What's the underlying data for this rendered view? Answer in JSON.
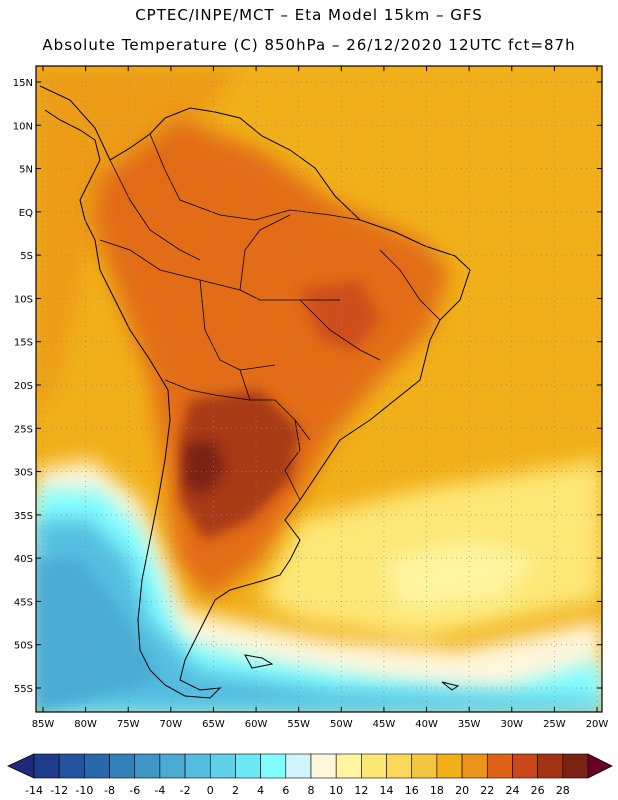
{
  "header": {
    "line1": "CPTEC/INPE/MCT –  Eta Model 15km – GFS",
    "line2": "Absolute Temperature (C) 850hPa – 26/12/2020 12UTC fct=87h"
  },
  "map": {
    "lat_labels": [
      "15N",
      "10N",
      "5N",
      "EQ",
      "5S",
      "10S",
      "15S",
      "20S",
      "25S",
      "30S",
      "35S",
      "40S",
      "45S",
      "50S",
      "55S"
    ],
    "lon_labels": [
      "85W",
      "80W",
      "75W",
      "70W",
      "65W",
      "60W",
      "55W",
      "50W",
      "45W",
      "40W",
      "35W",
      "30W",
      "25W",
      "20W"
    ],
    "lat_values": [
      15,
      10,
      5,
      0,
      -5,
      -10,
      -15,
      -20,
      -25,
      -30,
      -35,
      -40,
      -45,
      -50,
      -55
    ],
    "lon_values": [
      -85,
      -80,
      -75,
      -70,
      -65,
      -60,
      -55,
      -50,
      -45,
      -40,
      -35,
      -30,
      -25,
      -20
    ]
  },
  "colorbar": {
    "labels": [
      "-14",
      "-12",
      "-10",
      "-8",
      "-6",
      "-4",
      "-2",
      "0",
      "2",
      "4",
      "6",
      "8",
      "10",
      "12",
      "14",
      "16",
      "18",
      "20",
      "22",
      "24",
      "26",
      "28"
    ],
    "colors": [
      "#1e3c8c",
      "#24539f",
      "#2a68ad",
      "#3480ba",
      "#3f96c6",
      "#4aaad2",
      "#55bde0",
      "#5fd0ea",
      "#6ee8f5",
      "#7ffdff",
      "#cff5fb",
      "#fff7dc",
      "#fff49f",
      "#fde774",
      "#fad85a",
      "#f5c63f",
      "#f1b01a",
      "#eb9419",
      "#e06218",
      "#c9471a",
      "#a33413",
      "#7a2315"
    ],
    "under_color": "#21297a",
    "over_color": "#6c0027"
  },
  "palette": {
    "frame": "#000000",
    "grid": "#8a8a8a",
    "land_outline": "#000000"
  }
}
